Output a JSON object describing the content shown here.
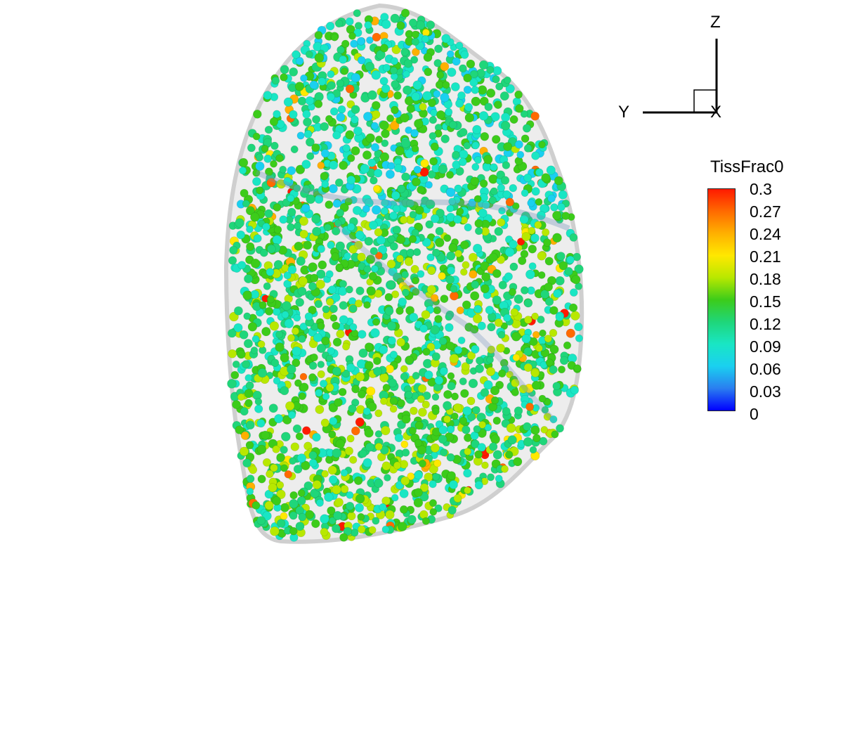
{
  "figure": {
    "axes_triad": {
      "z_label": "Z",
      "y_label": "Y",
      "x_label": "X"
    },
    "legend": {
      "title": "TissFrac0",
      "ticks": [
        "0.3",
        "0.27",
        "0.24",
        "0.21",
        "0.18",
        "0.15",
        "0.12",
        "0.09",
        "0.06",
        "0.03",
        "0"
      ],
      "min": 0,
      "max": 0.3,
      "colormap": [
        "#0000ff",
        "#2a7ef0",
        "#1ad0f0",
        "#19e6c4",
        "#1fd67a",
        "#3ccc1a",
        "#b8e800",
        "#ffe800",
        "#ffb000",
        "#ff6a00",
        "#ff1a00"
      ]
    },
    "object_icon": "lung-sphere-cloud",
    "envelope_color": "#d8d8d8"
  }
}
